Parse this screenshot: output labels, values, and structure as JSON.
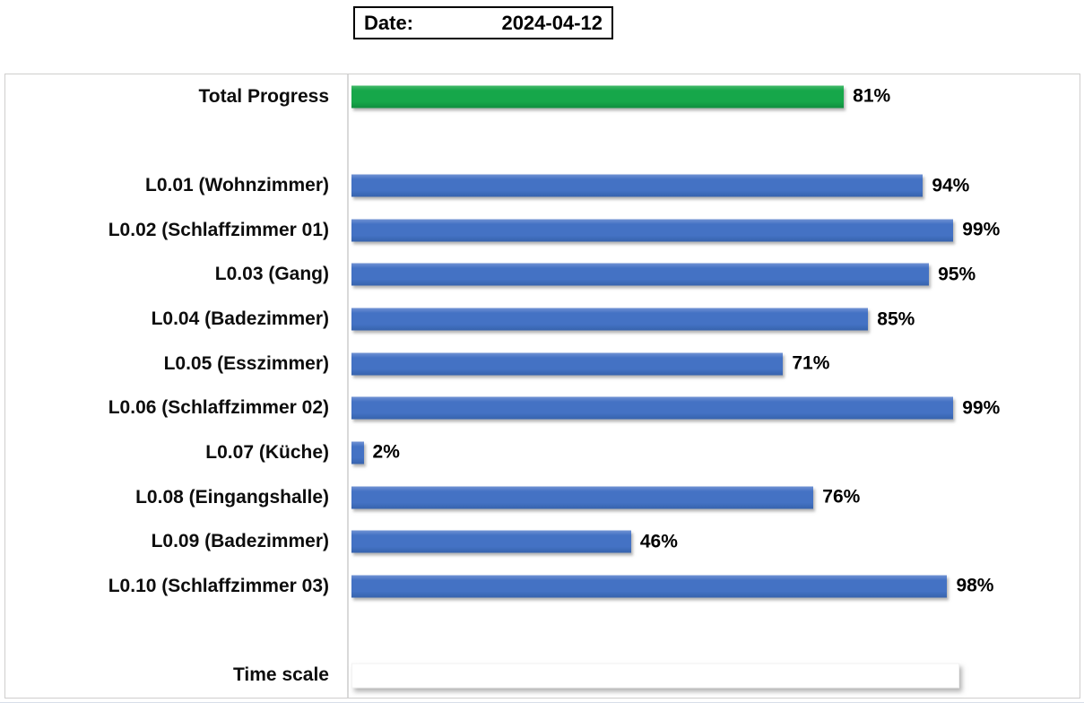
{
  "date_box": {
    "label": "Date:",
    "value": "2024-04-12"
  },
  "colors": {
    "total_bar_green": "#16a74a",
    "room_bar_blue": "#4472c4",
    "timescale_bar_white": "#ffffff",
    "axis_line": "#d9d9d9",
    "chart_border": "#cfcecd",
    "text": "#000000"
  },
  "chart_data": {
    "type": "bar",
    "orientation": "horizontal",
    "title": "",
    "xlabel": "",
    "ylabel": "",
    "x_axis": {
      "min": 0,
      "max": 100,
      "unit": "%",
      "ticks_visible": false,
      "grid": false
    },
    "value_labels_shown": true,
    "legend": "none",
    "rows": [
      {
        "label": "Total Progress",
        "value": 81,
        "value_label": "81%",
        "kind": "total"
      },
      {
        "kind": "spacer"
      },
      {
        "label": "L0.01 (Wohnzimmer)",
        "value": 94,
        "value_label": "94%",
        "kind": "room"
      },
      {
        "label": "L0.02 (Schlaffzimmer 01)",
        "value": 99,
        "value_label": "99%",
        "kind": "room"
      },
      {
        "label": "L0.03 (Gang)",
        "value": 95,
        "value_label": "95%",
        "kind": "room"
      },
      {
        "label": "L0.04 (Badezimmer)",
        "value": 85,
        "value_label": "85%",
        "kind": "room"
      },
      {
        "label": "L0.05 (Esszimmer)",
        "value": 71,
        "value_label": "71%",
        "kind": "room"
      },
      {
        "label": "L0.06 (Schlaffzimmer 02)",
        "value": 99,
        "value_label": "99%",
        "kind": "room"
      },
      {
        "label": "L0.07 (Küche)",
        "value": 2,
        "value_label": "2%",
        "kind": "room"
      },
      {
        "label": "L0.08 (Eingangshalle)",
        "value": 76,
        "value_label": "76%",
        "kind": "room"
      },
      {
        "label": "L0.09 (Badezimmer)",
        "value": 46,
        "value_label": "46%",
        "kind": "room"
      },
      {
        "label": "L0.10 (Schlaffzimmer 03)",
        "value": 98,
        "value_label": "98%",
        "kind": "room"
      },
      {
        "kind": "spacer"
      },
      {
        "label": "Time scale",
        "value": 100,
        "value_label": "",
        "kind": "timescale"
      }
    ]
  }
}
